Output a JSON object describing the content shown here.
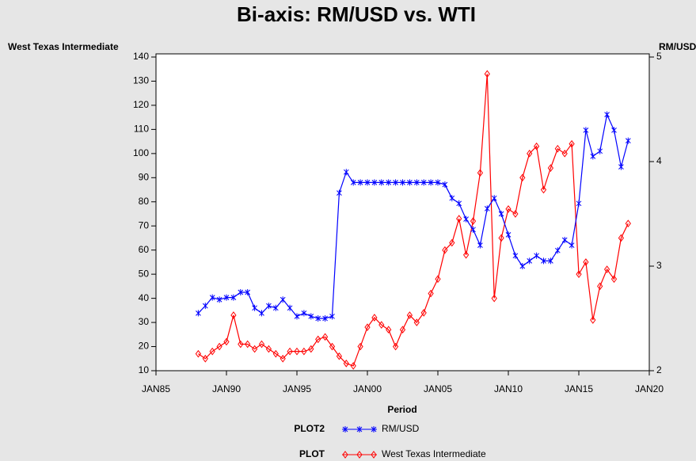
{
  "chart_data": {
    "type": "line",
    "title": "Bi-axis: RM/USD vs. WTI",
    "y_label": "West Texas Intermediate",
    "y2_label": "RM/USD",
    "x_label": "Period",
    "x": [
      1988.0,
      1988.5,
      1989.0,
      1989.5,
      1990.0,
      1990.5,
      1991.0,
      1991.5,
      1992.0,
      1992.5,
      1993.0,
      1993.5,
      1994.0,
      1994.5,
      1995.0,
      1995.5,
      1996.0,
      1996.5,
      1997.0,
      1997.5,
      1998.0,
      1998.5,
      1999.0,
      1999.5,
      2000.0,
      2000.5,
      2001.0,
      2001.5,
      2002.0,
      2002.5,
      2003.0,
      2003.5,
      2004.0,
      2004.5,
      2005.0,
      2005.5,
      2006.0,
      2006.5,
      2007.0,
      2007.5,
      2008.0,
      2008.5,
      2009.0,
      2009.5,
      2010.0,
      2010.5,
      2011.0,
      2011.5,
      2012.0,
      2012.5,
      2013.0,
      2013.5,
      2014.0,
      2014.5,
      2015.0,
      2015.5,
      2016.0,
      2016.5,
      2017.0,
      2017.5,
      2018.0,
      2018.5
    ],
    "series": [
      {
        "name": "West Texas Intermediate",
        "legend_title": "PLOT",
        "color": "#ff0000",
        "marker": "diamond",
        "values": [
          17,
          15,
          18,
          20,
          22,
          33,
          21,
          21,
          19,
          21,
          19,
          17,
          15,
          18,
          18,
          18,
          19,
          23,
          24,
          20,
          16,
          13,
          12,
          20,
          28,
          32,
          29,
          27,
          20,
          27,
          33,
          30,
          34,
          42,
          48,
          60,
          63,
          73,
          58,
          72,
          92,
          133,
          40,
          65,
          77,
          75,
          90,
          100,
          103,
          85,
          94,
          102,
          100,
          104,
          50,
          55,
          31,
          45,
          52,
          48,
          65,
          71
        ]
      },
      {
        "name": "RM/USD",
        "legend_title": "PLOT2",
        "color": "#0000ff",
        "marker": "star",
        "axis": "y2",
        "values": [
          2.55,
          2.62,
          2.7,
          2.68,
          2.7,
          2.7,
          2.75,
          2.75,
          2.6,
          2.55,
          2.62,
          2.6,
          2.68,
          2.6,
          2.52,
          2.55,
          2.52,
          2.5,
          2.5,
          2.52,
          3.7,
          3.9,
          3.8,
          3.8,
          3.8,
          3.8,
          3.8,
          3.8,
          3.8,
          3.8,
          3.8,
          3.8,
          3.8,
          3.8,
          3.8,
          3.78,
          3.65,
          3.6,
          3.45,
          3.35,
          3.2,
          3.55,
          3.65,
          3.5,
          3.3,
          3.1,
          3.0,
          3.05,
          3.1,
          3.05,
          3.05,
          3.15,
          3.25,
          3.2,
          3.6,
          4.3,
          4.05,
          4.1,
          4.45,
          4.3,
          3.95,
          4.2
        ]
      }
    ],
    "xlim": [
      1985,
      2020
    ],
    "xticks": [
      {
        "value": 1985,
        "label": "JAN85"
      },
      {
        "value": 1990,
        "label": "JAN90"
      },
      {
        "value": 1995,
        "label": "JAN95"
      },
      {
        "value": 2000,
        "label": "JAN00"
      },
      {
        "value": 2005,
        "label": "JAN05"
      },
      {
        "value": 2010,
        "label": "JAN10"
      },
      {
        "value": 2015,
        "label": "JAN15"
      },
      {
        "value": 2020,
        "label": "JAN20"
      }
    ],
    "ylim": [
      10,
      140
    ],
    "yticks": [
      10,
      20,
      30,
      40,
      50,
      60,
      70,
      80,
      90,
      100,
      110,
      120,
      130,
      140
    ],
    "y2lim": [
      2,
      5
    ],
    "y2ticks": [
      2,
      3,
      4,
      5
    ]
  }
}
